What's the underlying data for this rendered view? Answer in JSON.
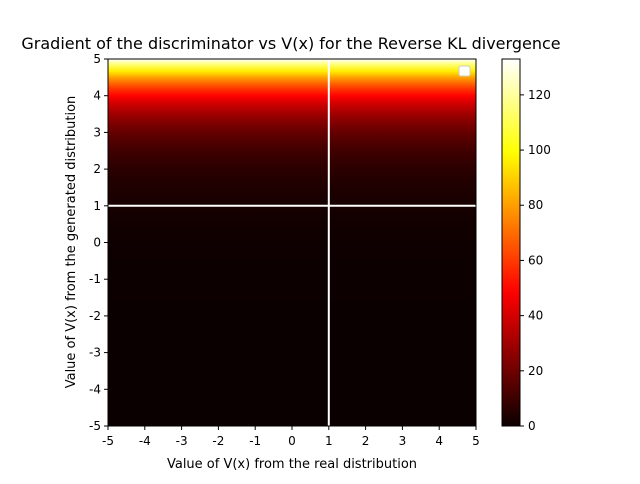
{
  "chart_data": {
    "type": "heatmap",
    "title": "Gradient of the discriminator vs V(x) for the Reverse KL divergence",
    "xlabel": "Value of V(x) from the real distribution",
    "ylabel": "Value of V(x) from the generated distribution",
    "xlim": [
      -5,
      5
    ],
    "ylim": [
      -5,
      5
    ],
    "x_ticks": [
      -5,
      -4,
      -3,
      -2,
      -1,
      0,
      1,
      2,
      3,
      4,
      5
    ],
    "y_ticks": [
      -5,
      -4,
      -3,
      -2,
      -1,
      0,
      1,
      2,
      3,
      4,
      5
    ],
    "colormap": "hot",
    "colorbar": {
      "vmin": 0,
      "vmax": 133,
      "ticks": [
        0,
        20,
        40,
        60,
        80,
        100,
        120
      ]
    },
    "field": {
      "description_of_values": "value depends on y only; approx exp(y - 0.11)",
      "y": [
        -5,
        -4,
        -3,
        -2,
        -1,
        0,
        1,
        2,
        3,
        4,
        4.5,
        5
      ],
      "value": [
        0.006,
        0.016,
        0.044,
        0.12,
        0.33,
        0.9,
        2.4,
        6.6,
        18,
        49,
        81,
        133
      ]
    },
    "reference_lines": {
      "vertical_x": 1,
      "horizontal_y": 1,
      "color": "#ffffff"
    },
    "legend": {
      "placement": "top-right",
      "entries": []
    },
    "grid": false
  }
}
